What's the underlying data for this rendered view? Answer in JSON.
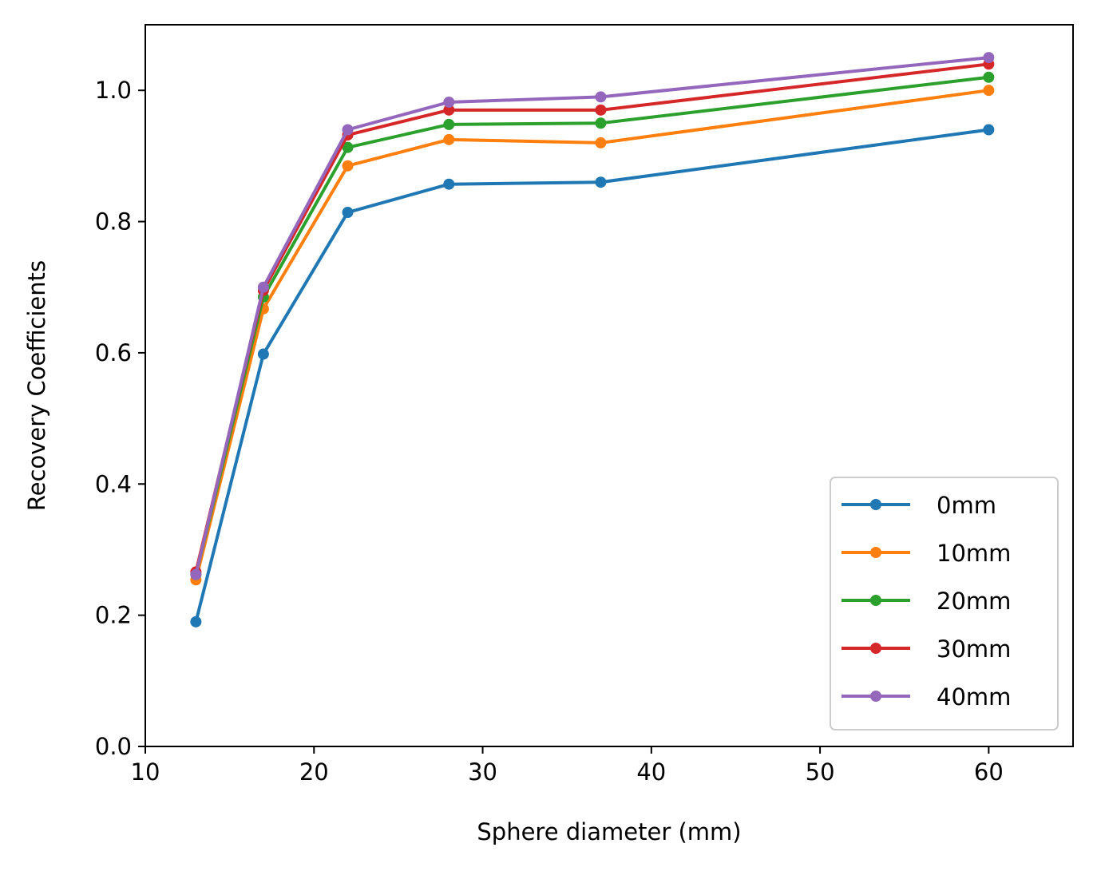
{
  "chart_data": {
    "type": "line",
    "title": "",
    "xlabel": "Sphere diameter (mm)",
    "ylabel": "Recovery Coefficients",
    "xlim": [
      10,
      65
    ],
    "ylim": [
      0.0,
      1.1
    ],
    "xticks": [
      10,
      20,
      30,
      40,
      50,
      60
    ],
    "yticks": [
      0.0,
      0.2,
      0.4,
      0.6,
      0.8,
      1.0
    ],
    "xtick_labels": [
      "10",
      "20",
      "30",
      "40",
      "50",
      "60"
    ],
    "ytick_labels": [
      "0.0",
      "0.2",
      "0.4",
      "0.6",
      "0.8",
      "1.0"
    ],
    "grid": false,
    "legend_position": "lower-right",
    "x": [
      13,
      17,
      22,
      28,
      37,
      60
    ],
    "series": [
      {
        "name": "0mm",
        "color": "#1f77b4",
        "values": [
          0.19,
          0.598,
          0.814,
          0.857,
          0.86,
          0.94
        ]
      },
      {
        "name": "10mm",
        "color": "#ff7f0e",
        "values": [
          0.254,
          0.667,
          0.885,
          0.925,
          0.92,
          1.0
        ]
      },
      {
        "name": "20mm",
        "color": "#2ca02c",
        "values": [
          0.262,
          0.685,
          0.913,
          0.948,
          0.95,
          1.02
        ]
      },
      {
        "name": "30mm",
        "color": "#d62728",
        "values": [
          0.266,
          0.695,
          0.932,
          0.97,
          0.97,
          1.04
        ]
      },
      {
        "name": "40mm",
        "color": "#9467bd",
        "values": [
          0.262,
          0.7,
          0.94,
          0.982,
          0.99,
          1.05
        ]
      }
    ]
  }
}
